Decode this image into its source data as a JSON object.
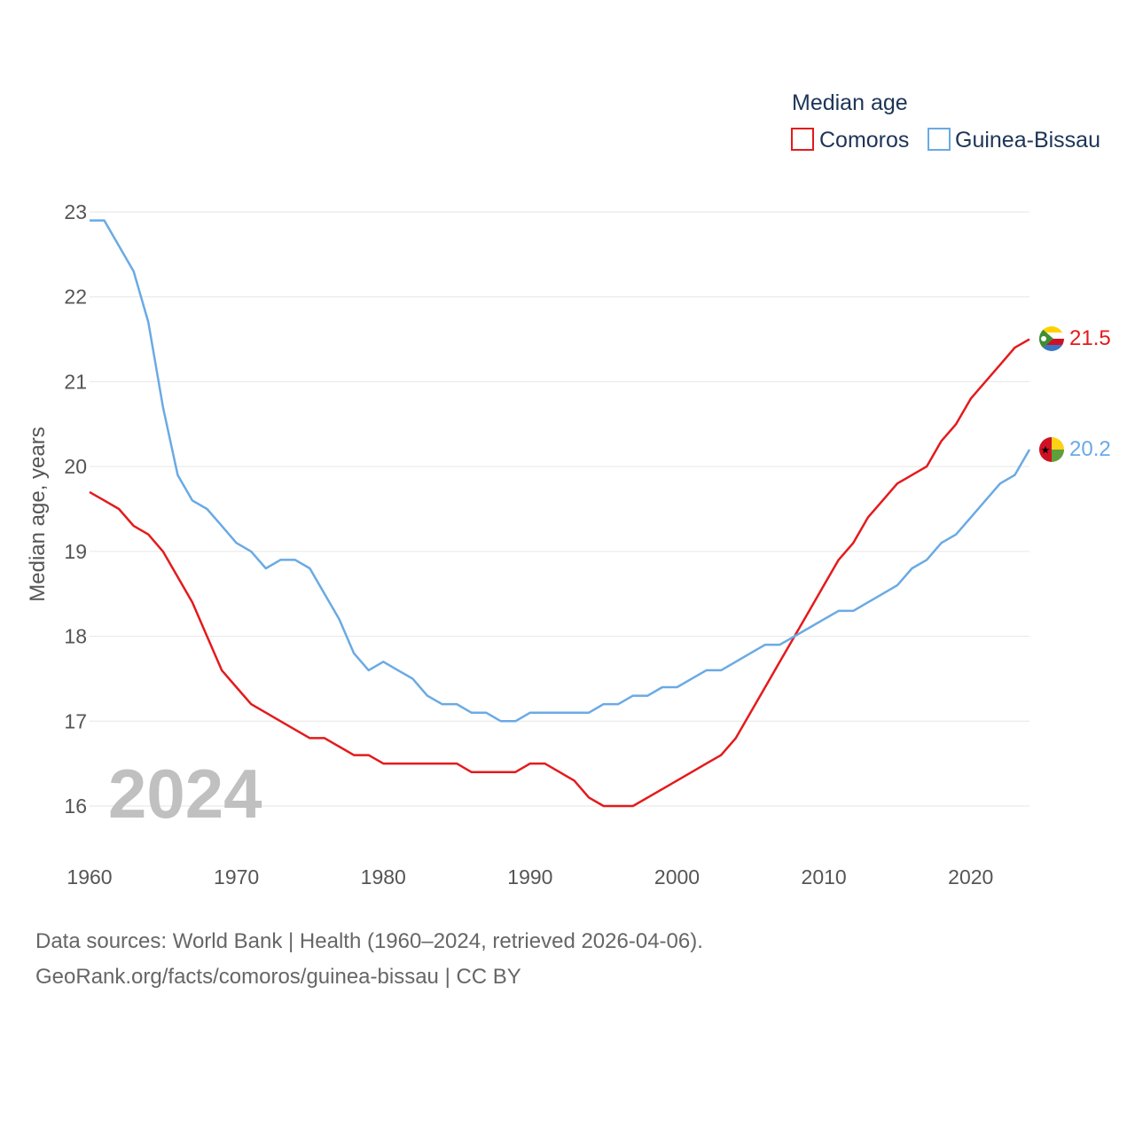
{
  "chart_data": {
    "type": "line",
    "legend_title": "Median age",
    "ylabel": "Median age, years",
    "year_label": "2024",
    "x_ticks": [
      "1960",
      "1970",
      "1980",
      "1990",
      "2000",
      "2010",
      "2020"
    ],
    "y_ticks": [
      "16",
      "17",
      "18",
      "19",
      "20",
      "21",
      "22",
      "23"
    ],
    "xlim": [
      1960,
      2024
    ],
    "ylim": [
      16,
      23
    ],
    "x": [
      1960,
      1961,
      1962,
      1963,
      1964,
      1965,
      1966,
      1967,
      1968,
      1969,
      1970,
      1971,
      1972,
      1973,
      1974,
      1975,
      1976,
      1977,
      1978,
      1979,
      1980,
      1981,
      1982,
      1983,
      1984,
      1985,
      1986,
      1987,
      1988,
      1989,
      1990,
      1991,
      1992,
      1993,
      1994,
      1995,
      1996,
      1997,
      1998,
      1999,
      2000,
      2001,
      2002,
      2003,
      2004,
      2005,
      2006,
      2007,
      2008,
      2009,
      2010,
      2011,
      2012,
      2013,
      2014,
      2015,
      2016,
      2017,
      2018,
      2019,
      2020,
      2021,
      2022,
      2023,
      2024
    ],
    "series": [
      {
        "name": "Comoros",
        "color": "#e41a1c",
        "end_label": "21.5",
        "values": [
          19.7,
          19.6,
          19.5,
          19.3,
          19.2,
          19.0,
          18.7,
          18.4,
          18.0,
          17.6,
          17.4,
          17.2,
          17.1,
          17.0,
          16.9,
          16.8,
          16.8,
          16.7,
          16.6,
          16.6,
          16.5,
          16.5,
          16.5,
          16.5,
          16.5,
          16.5,
          16.4,
          16.4,
          16.4,
          16.4,
          16.5,
          16.5,
          16.4,
          16.3,
          16.1,
          16.0,
          16.0,
          16.0,
          16.1,
          16.2,
          16.3,
          16.4,
          16.5,
          16.6,
          16.8,
          17.1,
          17.4,
          17.7,
          18.0,
          18.3,
          18.6,
          18.9,
          19.1,
          19.4,
          19.6,
          19.8,
          19.9,
          20.0,
          20.3,
          20.5,
          20.8,
          21.0,
          21.2,
          21.4,
          21.5
        ]
      },
      {
        "name": "Guinea-Bissau",
        "color": "#6aaae4",
        "end_label": "20.2",
        "values": [
          22.9,
          22.9,
          22.6,
          22.3,
          21.7,
          20.7,
          19.9,
          19.6,
          19.5,
          19.3,
          19.1,
          19.0,
          18.8,
          18.9,
          18.9,
          18.8,
          18.5,
          18.2,
          17.8,
          17.6,
          17.7,
          17.6,
          17.5,
          17.3,
          17.2,
          17.2,
          17.1,
          17.1,
          17.0,
          17.0,
          17.1,
          17.1,
          17.1,
          17.1,
          17.1,
          17.2,
          17.2,
          17.3,
          17.3,
          17.4,
          17.4,
          17.5,
          17.6,
          17.6,
          17.7,
          17.8,
          17.9,
          17.9,
          18.0,
          18.1,
          18.2,
          18.3,
          18.3,
          18.4,
          18.5,
          18.6,
          18.8,
          18.9,
          19.1,
          19.2,
          19.4,
          19.6,
          19.8,
          19.9,
          20.2
        ]
      }
    ]
  },
  "sources": {
    "line1": "Data sources: World Bank | Health (1960–2024, retrieved 2026-04-06).",
    "line2": "GeoRank.org/facts/comoros/guinea-bissau | CC BY"
  },
  "flags": {
    "comoros": "comoros-flag-icon",
    "guinea_bissau": "guinea-bissau-flag-icon"
  }
}
